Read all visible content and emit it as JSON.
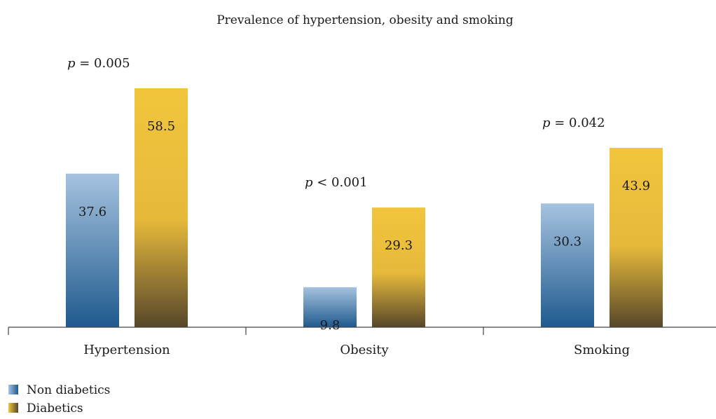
{
  "chart_data": {
    "type": "bar",
    "title": "Prevalence of hypertension, obesity and smoking",
    "xlabel": "",
    "ylabel": "",
    "categories": [
      "Hypertension",
      "Obesity",
      "Smoking"
    ],
    "series": [
      {
        "name": "Non diabetics",
        "values": [
          37.6,
          9.8,
          30.3
        ]
      },
      {
        "name": "Diabetics",
        "values": [
          58.5,
          29.3,
          43.9
        ]
      }
    ],
    "data_labels": [
      [
        "37.6",
        "9.8",
        "30.3"
      ],
      [
        "58.5",
        "29.3",
        "43.9"
      ]
    ],
    "annotations": [
      {
        "category": "Hypertension",
        "italic": "p",
        "rest": " = 0.005"
      },
      {
        "category": "Obesity",
        "italic": "p",
        "rest": " < 0.001"
      },
      {
        "category": "Smoking",
        "italic": "p",
        "rest": " = 0.042"
      }
    ],
    "ylim": [
      0,
      60
    ],
    "grid": false,
    "legend_position": "bottom-left",
    "colors": {
      "Non diabetics": {
        "top": "#a6c3df",
        "bottom": "#1f5a8e"
      },
      "Diabetics": {
        "top": "#f2c53d",
        "bottom": "#57472a"
      }
    }
  }
}
